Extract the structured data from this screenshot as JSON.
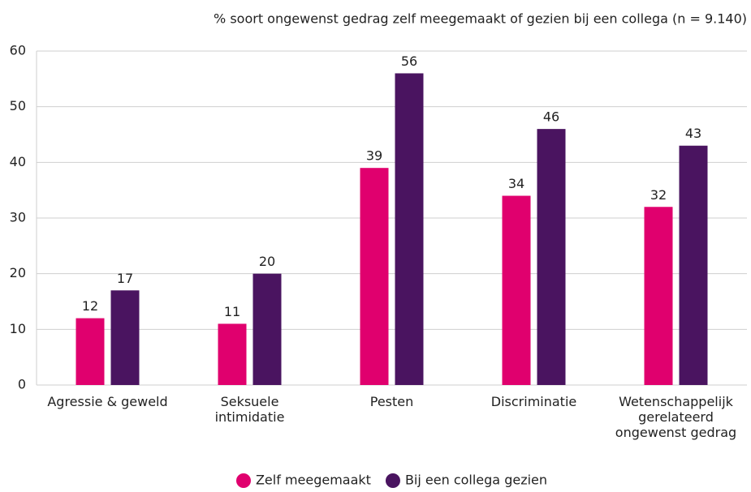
{
  "chart_data": {
    "type": "bar",
    "title": "% soort ongewenst gedrag zelf meegemaakt of gezien bij een collega (n = 9.140)",
    "categories": [
      "Agressie & geweld",
      "Seksuele intimidatie",
      "Pesten",
      "Discriminatie",
      "Wetenschappelijk gerelateerd ongewenst gedrag"
    ],
    "series": [
      {
        "name": "Zelf meegemaakt",
        "color": "#e0006e",
        "values": [
          12,
          11,
          39,
          34,
          32
        ]
      },
      {
        "name": "Bij een collega gezien",
        "color": "#4a1460",
        "values": [
          17,
          20,
          56,
          46,
          43
        ]
      }
    ],
    "ylim": [
      0,
      60
    ],
    "yticks": [
      0,
      10,
      20,
      30,
      40,
      50,
      60
    ],
    "grid": true,
    "legend": "bottom"
  }
}
